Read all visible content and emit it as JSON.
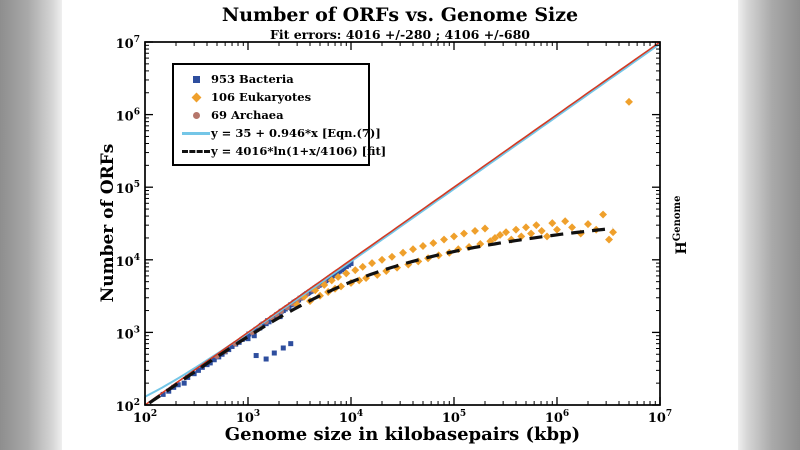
{
  "header": {
    "title": "Number of ORFs vs. Genome Size",
    "subtitle": "Fit errors: 4016 +/-280 ;  4106 +/-680"
  },
  "axes": {
    "x_label": "Genome size in kilobasepairs (kbp)",
    "y_label": "Number of ORFs",
    "right_label_base": "H",
    "right_label_sup": "Genome"
  },
  "legend": {
    "items": [
      {
        "label": "953 Bacteria",
        "marker": "square",
        "color": "#2e4e9e"
      },
      {
        "label": "106 Eukaryotes",
        "marker": "diamond",
        "color": "#efa02c"
      },
      {
        "label": "69 Archaea",
        "marker": "circle",
        "color": "#b5766b"
      },
      {
        "label": "y = 35 + 0.946*x [Eqn.(7)]",
        "marker": "line",
        "color": "#74c6e7"
      },
      {
        "label": "y = 4016*ln(1+x/4106) [fit]",
        "marker": "dash",
        "color": "#111111"
      }
    ]
  },
  "chart_data": {
    "type": "scatter",
    "title": "Number of ORFs vs. Genome Size",
    "xlabel": "Genome size in kilobasepairs (kbp)",
    "ylabel": "Number of ORFs",
    "x_scale": "log",
    "y_scale": "log",
    "xlim": [
      100,
      10000000
    ],
    "ylim": [
      100,
      10000000
    ],
    "tick_exponents": [
      2,
      3,
      4,
      5,
      6,
      7
    ],
    "grid": false,
    "legend_position": "upper-left-inside",
    "series": [
      {
        "name": "953 Bacteria",
        "marker": "square",
        "color": "#2e4e9e",
        "points": [
          [
            150,
            140
          ],
          [
            170,
            155
          ],
          [
            190,
            175
          ],
          [
            210,
            190
          ],
          [
            240,
            200
          ],
          [
            260,
            240
          ],
          [
            300,
            270
          ],
          [
            330,
            300
          ],
          [
            360,
            330
          ],
          [
            400,
            360
          ],
          [
            430,
            380
          ],
          [
            470,
            420
          ],
          [
            520,
            460
          ],
          [
            560,
            500
          ],
          [
            600,
            540
          ],
          [
            650,
            580
          ],
          [
            700,
            640
          ],
          [
            760,
            690
          ],
          [
            820,
            730
          ],
          [
            880,
            800
          ],
          [
            950,
            850
          ],
          [
            1000,
            820
          ],
          [
            1020,
            950
          ],
          [
            1100,
            1000
          ],
          [
            1150,
            900
          ],
          [
            1200,
            1100
          ],
          [
            1300,
            1150
          ],
          [
            1350,
            1250
          ],
          [
            1400,
            1300
          ],
          [
            1500,
            1320
          ],
          [
            1550,
            1450
          ],
          [
            1600,
            1400
          ],
          [
            1700,
            1550
          ],
          [
            1800,
            1600
          ],
          [
            1900,
            1750
          ],
          [
            2000,
            1800
          ],
          [
            2050,
            1650
          ],
          [
            2100,
            1950
          ],
          [
            2200,
            2000
          ],
          [
            2300,
            2100
          ],
          [
            2400,
            2200
          ],
          [
            2500,
            2250
          ],
          [
            2600,
            2400
          ],
          [
            2700,
            2450
          ],
          [
            2800,
            2600
          ],
          [
            2900,
            2650
          ],
          [
            3000,
            2750
          ],
          [
            3100,
            2800
          ],
          [
            3200,
            2950
          ],
          [
            3300,
            3000
          ],
          [
            3400,
            3100
          ],
          [
            3500,
            3200
          ],
          [
            3600,
            3300
          ],
          [
            3700,
            3400
          ],
          [
            3800,
            3450
          ],
          [
            3900,
            3550
          ],
          [
            4000,
            3650
          ],
          [
            4100,
            3700
          ],
          [
            4300,
            3900
          ],
          [
            4500,
            4100
          ],
          [
            4700,
            4300
          ],
          [
            4900,
            4450
          ],
          [
            5100,
            4600
          ],
          [
            5300,
            4800
          ],
          [
            5500,
            5000
          ],
          [
            5700,
            5150
          ],
          [
            5900,
            5350
          ],
          [
            6100,
            5500
          ],
          [
            6300,
            5700
          ],
          [
            6500,
            5900
          ],
          [
            6700,
            6050
          ],
          [
            7000,
            6300
          ],
          [
            7200,
            6500
          ],
          [
            7500,
            6800
          ],
          [
            7800,
            7000
          ],
          [
            8100,
            7300
          ],
          [
            8500,
            7600
          ],
          [
            9000,
            8100
          ],
          [
            9500,
            8500
          ],
          [
            10000,
            8900
          ],
          [
            1500,
            430
          ],
          [
            1800,
            520
          ],
          [
            2200,
            610
          ],
          [
            2600,
            700
          ],
          [
            1200,
            480
          ]
        ]
      },
      {
        "name": "69 Archaea",
        "marker": "circle",
        "color": "#b5766b",
        "points": [
          [
            500,
            470
          ],
          [
            600,
            550
          ],
          [
            750,
            700
          ],
          [
            900,
            830
          ],
          [
            1100,
            1000
          ],
          [
            1300,
            1200
          ],
          [
            1500,
            1400
          ],
          [
            1700,
            1600
          ],
          [
            1900,
            1750
          ],
          [
            2100,
            1950
          ],
          [
            2400,
            2200
          ],
          [
            2700,
            2500
          ],
          [
            3000,
            2750
          ],
          [
            3300,
            3000
          ],
          [
            3700,
            3400
          ],
          [
            4200,
            3850
          ],
          [
            4800,
            4400
          ],
          [
            5500,
            5000
          ]
        ]
      },
      {
        "name": "106 Eukaryotes",
        "marker": "diamond",
        "color": "#efa02c",
        "points": [
          [
            3000,
            2400
          ],
          [
            3500,
            3100
          ],
          [
            4000,
            2700
          ],
          [
            4500,
            3800
          ],
          [
            5000,
            3200
          ],
          [
            5500,
            4500
          ],
          [
            6000,
            3600
          ],
          [
            6500,
            5200
          ],
          [
            7000,
            4000
          ],
          [
            7500,
            5800
          ],
          [
            8000,
            4300
          ],
          [
            9000,
            6500
          ],
          [
            10000,
            4800
          ],
          [
            11000,
            7200
          ],
          [
            12000,
            5200
          ],
          [
            13000,
            8000
          ],
          [
            14000,
            5600
          ],
          [
            16000,
            9000
          ],
          [
            18000,
            6200
          ],
          [
            20000,
            10000
          ],
          [
            22000,
            7000
          ],
          [
            25000,
            11000
          ],
          [
            28000,
            7800
          ],
          [
            32000,
            12500
          ],
          [
            36000,
            8600
          ],
          [
            40000,
            14000
          ],
          [
            45000,
            9500
          ],
          [
            50000,
            15500
          ],
          [
            56000,
            10500
          ],
          [
            63000,
            17000
          ],
          [
            71000,
            11500
          ],
          [
            80000,
            19000
          ],
          [
            90000,
            12500
          ],
          [
            100000,
            21000
          ],
          [
            110000,
            14000
          ],
          [
            125000,
            23000
          ],
          [
            140000,
            15000
          ],
          [
            160000,
            25000
          ],
          [
            180000,
            16500
          ],
          [
            200000,
            27000
          ],
          [
            225000,
            18000
          ],
          [
            250000,
            20000
          ],
          [
            280000,
            22000
          ],
          [
            320000,
            24000
          ],
          [
            360000,
            19000
          ],
          [
            400000,
            26000
          ],
          [
            450000,
            21000
          ],
          [
            500000,
            28000
          ],
          [
            560000,
            23000
          ],
          [
            630000,
            30000
          ],
          [
            710000,
            25000
          ],
          [
            800000,
            21000
          ],
          [
            900000,
            32000
          ],
          [
            1000000,
            26000
          ],
          [
            1200000,
            34000
          ],
          [
            1400000,
            28000
          ],
          [
            1700000,
            23000
          ],
          [
            2000000,
            31000
          ],
          [
            2400000,
            26000
          ],
          [
            2800000,
            42000
          ],
          [
            3200000,
            19000
          ],
          [
            3500000,
            24000
          ],
          [
            5000000,
            1500000
          ]
        ]
      }
    ],
    "lines": [
      {
        "name": "y = 35 + 0.946*x [Eqn.(7)]",
        "type": "linear",
        "a": 35,
        "b": 0.946,
        "color": "#74c6e7",
        "style": "solid",
        "width": 2,
        "x_range": [
          100,
          10000000
        ]
      },
      {
        "name": "identity-reference",
        "type": "linear",
        "a": 0,
        "b": 1,
        "color": "#d43a22",
        "style": "solid",
        "width": 1.6,
        "x_range": [
          100,
          10000000
        ]
      },
      {
        "name": "y = 4016*ln(1+x/4106) [fit]",
        "type": "log_fit",
        "A": 4016,
        "B": 4106,
        "color": "#111111",
        "style": "dashed",
        "width": 3.2,
        "x_range": [
          110,
          3500000
        ]
      }
    ]
  }
}
